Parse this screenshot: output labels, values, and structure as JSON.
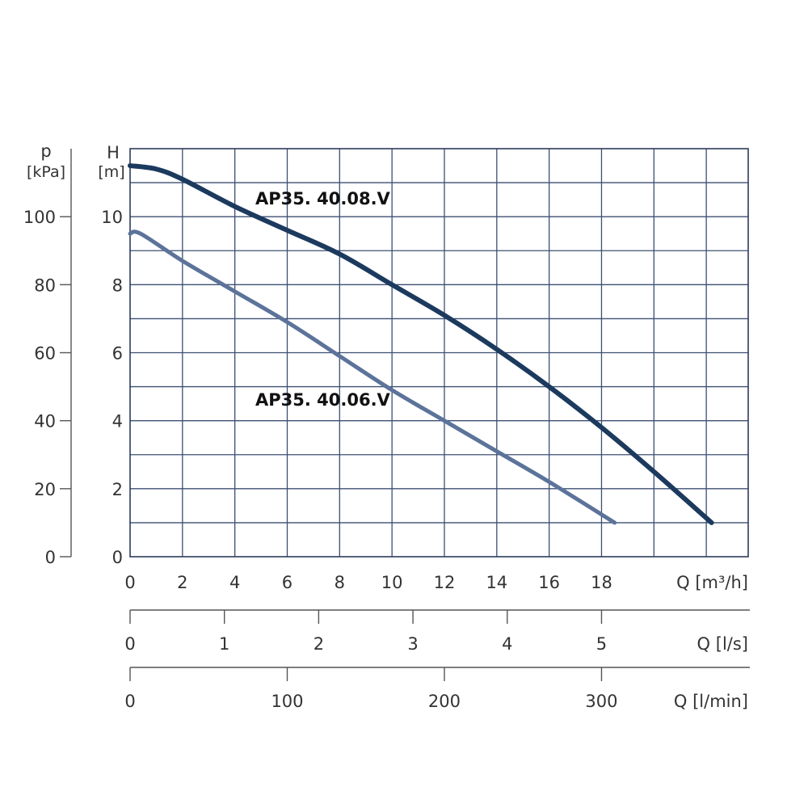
{
  "chart_data": {
    "type": "line",
    "x_axis": {
      "label": "Q [m³/h]",
      "range": [
        0,
        23.6
      ],
      "ticks": [
        0,
        2,
        4,
        6,
        8,
        10,
        12,
        14,
        16,
        18
      ],
      "grid_step": 2
    },
    "y_axis_H": {
      "label": "H",
      "unit": "[m]",
      "range": [
        0,
        12
      ],
      "ticks": [
        0,
        2,
        4,
        6,
        8,
        10
      ],
      "grid_step": 1
    },
    "y_axis_p": {
      "label": "p",
      "unit": "[kPa]",
      "ticks": [
        0,
        20,
        40,
        60,
        80,
        100
      ],
      "kpa_per_m": 10
    },
    "secondary_axes": [
      {
        "label": "Q [l/s]",
        "ticks": [
          0,
          1,
          2,
          3,
          4,
          5
        ],
        "per_m3h": 3.6
      },
      {
        "label": "Q [l/min]",
        "ticks": [
          0,
          100,
          200,
          300
        ],
        "per_m3h": 0.06
      }
    ],
    "grid": true,
    "series": [
      {
        "name": "AP35. 40.08.V",
        "color": "#1c3a5e",
        "x": [
          0,
          1,
          2,
          4,
          6,
          8,
          10,
          12,
          14,
          16,
          18,
          20,
          22.2
        ],
        "y": [
          11.5,
          11.4,
          11.1,
          10.3,
          9.6,
          8.9,
          8.0,
          7.1,
          6.1,
          5.0,
          3.8,
          2.5,
          1.0
        ]
      },
      {
        "name": "AP35. 40.06.V",
        "color": "#5c739a",
        "x": [
          0,
          0.4,
          2,
          4,
          6,
          8,
          10,
          12,
          14,
          16,
          18.5
        ],
        "y": [
          9.5,
          9.5,
          8.7,
          7.8,
          6.9,
          5.9,
          4.9,
          4.0,
          3.1,
          2.2,
          1.0
        ]
      }
    ]
  }
}
